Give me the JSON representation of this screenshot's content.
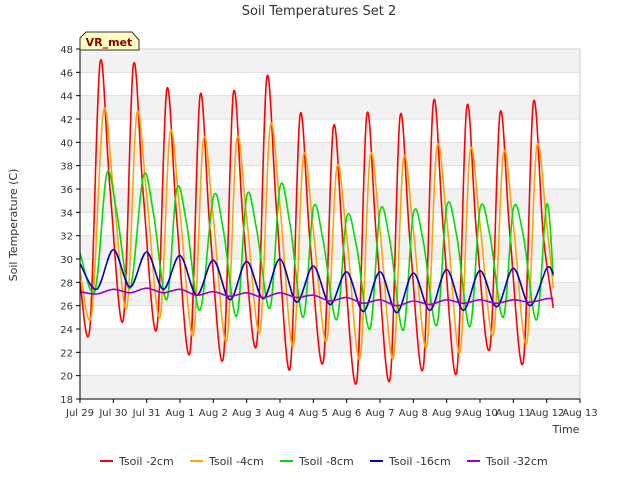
{
  "chart_data": {
    "type": "line",
    "title": "Soil Temperatures Set 2",
    "xlabel": "Time",
    "ylabel": "Soil Temperature (C)",
    "station_label": "VR_met",
    "xlim": [
      0,
      15
    ],
    "ylim": [
      18,
      48
    ],
    "yticks": [
      18,
      20,
      22,
      24,
      26,
      28,
      30,
      32,
      34,
      36,
      38,
      40,
      42,
      44,
      46,
      48
    ],
    "xticks": [
      {
        "label": "Jul 29",
        "day": 0
      },
      {
        "label": "Jul 30",
        "day": 1
      },
      {
        "label": "Jul 31",
        "day": 2
      },
      {
        "label": "Aug 1",
        "day": 3
      },
      {
        "label": "Aug 2",
        "day": 4
      },
      {
        "label": "Aug 3",
        "day": 5
      },
      {
        "label": "Aug 4",
        "day": 6
      },
      {
        "label": "Aug 5",
        "day": 7
      },
      {
        "label": "Aug 6",
        "day": 8
      },
      {
        "label": "Aug 7",
        "day": 9
      },
      {
        "label": "Aug 8",
        "day": 10
      },
      {
        "label": "Aug 9",
        "day": 11
      },
      {
        "label": "Aug 10",
        "day": 12
      },
      {
        "label": "Aug 11",
        "day": 13
      },
      {
        "label": "Aug 12",
        "day": 14
      },
      {
        "label": "Aug 13",
        "day": 15
      }
    ],
    "grid": true,
    "legend_position": "bottom",
    "series": [
      {
        "name": "Tsoil -2cm",
        "color": "#ff0000",
        "points": [
          [
            0.0,
            28.0
          ],
          [
            0.3,
            24.2
          ],
          [
            0.6,
            46.8
          ],
          [
            0.9,
            36.0
          ],
          [
            1.3,
            24.8
          ],
          [
            1.6,
            46.6
          ],
          [
            1.9,
            35.5
          ],
          [
            2.3,
            24.0
          ],
          [
            2.6,
            44.5
          ],
          [
            2.9,
            33.5
          ],
          [
            3.3,
            22.0
          ],
          [
            3.6,
            44.0
          ],
          [
            3.9,
            32.5
          ],
          [
            4.3,
            21.5
          ],
          [
            4.6,
            44.2
          ],
          [
            4.9,
            33.0
          ],
          [
            5.3,
            22.7
          ],
          [
            5.6,
            45.5
          ],
          [
            5.9,
            34.0
          ],
          [
            6.3,
            20.6
          ],
          [
            6.6,
            42.3
          ],
          [
            6.9,
            31.5
          ],
          [
            7.3,
            21.2
          ],
          [
            7.6,
            41.3
          ],
          [
            7.9,
            31.0
          ],
          [
            8.3,
            19.5
          ],
          [
            8.6,
            42.3
          ],
          [
            8.9,
            31.5
          ],
          [
            9.3,
            19.7
          ],
          [
            9.6,
            42.2
          ],
          [
            9.9,
            31.5
          ],
          [
            10.3,
            20.7
          ],
          [
            10.6,
            43.4
          ],
          [
            10.9,
            32.5
          ],
          [
            11.3,
            20.3
          ],
          [
            11.6,
            43.0
          ],
          [
            11.9,
            32.0
          ],
          [
            12.3,
            22.4
          ],
          [
            12.6,
            42.5
          ],
          [
            12.9,
            32.0
          ],
          [
            13.3,
            21.2
          ],
          [
            13.6,
            43.4
          ],
          [
            13.9,
            32.0
          ],
          [
            14.2,
            25.8
          ]
        ]
      },
      {
        "name": "Tsoil -4cm",
        "color": "#ffa500",
        "points": [
          [
            0.0,
            29.0
          ],
          [
            0.35,
            25.3
          ],
          [
            0.7,
            42.6
          ],
          [
            1.0,
            36.0
          ],
          [
            1.4,
            25.8
          ],
          [
            1.7,
            42.4
          ],
          [
            2.0,
            35.5
          ],
          [
            2.4,
            25.0
          ],
          [
            2.7,
            40.8
          ],
          [
            3.0,
            34.0
          ],
          [
            3.4,
            23.5
          ],
          [
            3.7,
            40.2
          ],
          [
            4.0,
            33.5
          ],
          [
            4.4,
            23.0
          ],
          [
            4.7,
            40.2
          ],
          [
            5.0,
            33.5
          ],
          [
            5.4,
            23.8
          ],
          [
            5.7,
            41.3
          ],
          [
            6.0,
            34.5
          ],
          [
            6.4,
            22.5
          ],
          [
            6.7,
            38.8
          ],
          [
            7.0,
            32.5
          ],
          [
            7.4,
            23.0
          ],
          [
            7.7,
            37.8
          ],
          [
            8.0,
            32.0
          ],
          [
            8.4,
            21.5
          ],
          [
            8.7,
            38.7
          ],
          [
            9.0,
            32.5
          ],
          [
            9.4,
            21.5
          ],
          [
            9.7,
            38.5
          ],
          [
            10.0,
            32.5
          ],
          [
            10.4,
            22.5
          ],
          [
            10.7,
            39.5
          ],
          [
            11.0,
            33.5
          ],
          [
            11.4,
            22.0
          ],
          [
            11.7,
            39.2
          ],
          [
            12.0,
            33.0
          ],
          [
            12.4,
            23.5
          ],
          [
            12.7,
            39.0
          ],
          [
            13.0,
            33.0
          ],
          [
            13.4,
            22.8
          ],
          [
            13.7,
            39.6
          ],
          [
            14.0,
            33.0
          ],
          [
            14.2,
            27.5
          ]
        ]
      },
      {
        "name": "Tsoil -8cm",
        "color": "#00dd00",
        "points": [
          [
            0.0,
            30.5
          ],
          [
            0.45,
            27.3
          ],
          [
            0.8,
            37.3
          ],
          [
            1.1,
            34.0
          ],
          [
            1.5,
            27.5
          ],
          [
            1.9,
            37.1
          ],
          [
            2.2,
            34.0
          ],
          [
            2.6,
            26.5
          ],
          [
            2.9,
            36.0
          ],
          [
            3.2,
            33.0
          ],
          [
            3.6,
            25.6
          ],
          [
            4.0,
            35.3
          ],
          [
            4.3,
            32.5
          ],
          [
            4.7,
            25.1
          ],
          [
            5.0,
            35.4
          ],
          [
            5.3,
            32.5
          ],
          [
            5.7,
            25.8
          ],
          [
            6.0,
            36.2
          ],
          [
            6.3,
            33.0
          ],
          [
            6.7,
            25.0
          ],
          [
            7.0,
            34.4
          ],
          [
            7.3,
            31.5
          ],
          [
            7.7,
            24.8
          ],
          [
            8.0,
            33.6
          ],
          [
            8.3,
            31.0
          ],
          [
            8.7,
            24.0
          ],
          [
            9.0,
            34.1
          ],
          [
            9.3,
            31.5
          ],
          [
            9.7,
            23.9
          ],
          [
            10.0,
            33.9
          ],
          [
            10.3,
            31.5
          ],
          [
            10.7,
            24.3
          ],
          [
            11.0,
            34.5
          ],
          [
            11.3,
            32.0
          ],
          [
            11.7,
            24.2
          ],
          [
            12.0,
            34.3
          ],
          [
            12.3,
            32.0
          ],
          [
            12.7,
            25.0
          ],
          [
            13.0,
            34.3
          ],
          [
            13.3,
            32.0
          ],
          [
            13.7,
            24.8
          ],
          [
            14.0,
            34.7
          ],
          [
            14.2,
            28.5
          ]
        ]
      },
      {
        "name": "Tsoil -16cm",
        "color": "#0000cc",
        "points": [
          [
            0.0,
            29.6
          ],
          [
            0.5,
            27.4
          ],
          [
            1.0,
            30.8
          ],
          [
            1.5,
            27.6
          ],
          [
            2.0,
            30.6
          ],
          [
            2.5,
            27.4
          ],
          [
            3.0,
            30.3
          ],
          [
            3.5,
            26.9
          ],
          [
            4.0,
            29.9
          ],
          [
            4.5,
            26.5
          ],
          [
            5.0,
            29.8
          ],
          [
            5.5,
            26.6
          ],
          [
            6.0,
            30.0
          ],
          [
            6.5,
            26.3
          ],
          [
            7.0,
            29.4
          ],
          [
            7.5,
            26.1
          ],
          [
            8.0,
            28.9
          ],
          [
            8.5,
            25.5
          ],
          [
            9.0,
            28.9
          ],
          [
            9.5,
            25.4
          ],
          [
            10.0,
            28.8
          ],
          [
            10.5,
            25.6
          ],
          [
            11.0,
            29.1
          ],
          [
            11.5,
            25.6
          ],
          [
            12.0,
            29.0
          ],
          [
            12.5,
            25.9
          ],
          [
            13.0,
            29.2
          ],
          [
            13.5,
            26.0
          ],
          [
            14.0,
            29.2
          ],
          [
            14.2,
            28.7
          ]
        ]
      },
      {
        "name": "Tsoil -32cm",
        "color": "#9900cc",
        "points": [
          [
            0.0,
            27.2
          ],
          [
            0.5,
            27.0
          ],
          [
            1.0,
            27.4
          ],
          [
            1.5,
            27.1
          ],
          [
            2.0,
            27.5
          ],
          [
            2.5,
            27.1
          ],
          [
            3.0,
            27.4
          ],
          [
            3.5,
            26.9
          ],
          [
            4.0,
            27.2
          ],
          [
            4.5,
            26.8
          ],
          [
            5.0,
            27.1
          ],
          [
            5.5,
            26.7
          ],
          [
            6.0,
            27.1
          ],
          [
            6.5,
            26.7
          ],
          [
            7.0,
            26.9
          ],
          [
            7.5,
            26.4
          ],
          [
            8.0,
            26.7
          ],
          [
            8.5,
            26.2
          ],
          [
            9.0,
            26.5
          ],
          [
            9.5,
            26.0
          ],
          [
            10.0,
            26.4
          ],
          [
            10.5,
            26.1
          ],
          [
            11.0,
            26.5
          ],
          [
            11.5,
            26.2
          ],
          [
            12.0,
            26.5
          ],
          [
            12.5,
            26.2
          ],
          [
            13.0,
            26.5
          ],
          [
            13.5,
            26.3
          ],
          [
            14.0,
            26.6
          ],
          [
            14.2,
            26.6
          ]
        ]
      }
    ]
  }
}
